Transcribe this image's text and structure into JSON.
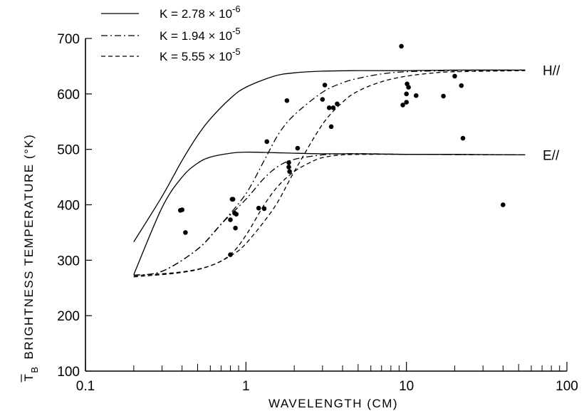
{
  "chart_data": {
    "type": "line",
    "xlabel": "WAVELENGTH (CM)",
    "ylabel_main": "BRIGHTNESS TEMPERATURE (°K)",
    "ylabel_symbol": "T",
    "ylabel_subscript": "B",
    "x_scale": "log",
    "xlim": [
      0.1,
      100
    ],
    "ylim": [
      100,
      700
    ],
    "x_ticks": [
      {
        "value": 0.1,
        "label": "0.1"
      },
      {
        "value": 1,
        "label": "1"
      },
      {
        "value": 10,
        "label": "10"
      },
      {
        "value": 100,
        "label": "100"
      }
    ],
    "y_ticks": [
      {
        "value": 100,
        "label": "100"
      },
      {
        "value": 200,
        "label": "200"
      },
      {
        "value": 300,
        "label": "300"
      },
      {
        "value": 400,
        "label": "400"
      },
      {
        "value": 500,
        "label": "500"
      },
      {
        "value": 600,
        "label": "600"
      },
      {
        "value": 700,
        "label": "700"
      }
    ],
    "grid": false,
    "legend": {
      "placement": "top-left",
      "entries": [
        {
          "style": "solid",
          "prefix": "K = 2.78 × 10",
          "exponent": "-6"
        },
        {
          "style": "dashdot",
          "prefix": "K = 1.94 × 10",
          "exponent": "-5"
        },
        {
          "style": "dashed",
          "prefix": "K = 5.55 × 10",
          "exponent": "-5"
        }
      ]
    },
    "curve_labels": [
      {
        "text": "H//",
        "group": "H"
      },
      {
        "text": "E//",
        "group": "E"
      }
    ],
    "series": [
      {
        "group": "H",
        "style": "solid",
        "x": [
          0.2,
          0.3,
          0.4,
          0.5,
          0.6,
          0.8,
          1,
          1.5,
          2,
          3,
          5,
          10,
          20,
          55
        ],
        "y": [
          333,
          415,
          480,
          525,
          555,
          592,
          612,
          632,
          638,
          641,
          642,
          642,
          643,
          643
        ]
      },
      {
        "group": "H",
        "style": "dashdot",
        "x": [
          0.2,
          0.3,
          0.5,
          0.7,
          1,
          1.3,
          1.6,
          2,
          3,
          4,
          5,
          7,
          10,
          20,
          55
        ],
        "y": [
          273,
          280,
          320,
          365,
          420,
          480,
          528,
          562,
          603,
          620,
          628,
          636,
          640,
          642,
          643
        ]
      },
      {
        "group": "H",
        "style": "dashed",
        "x": [
          0.2,
          0.4,
          0.6,
          0.8,
          1,
          1.5,
          2,
          3,
          4,
          5,
          7,
          10,
          15,
          20,
          55
        ],
        "y": [
          272,
          279,
          290,
          308,
          330,
          395,
          460,
          545,
          585,
          605,
          622,
          632,
          638,
          640,
          642
        ]
      },
      {
        "group": "E",
        "style": "solid",
        "x": [
          0.2,
          0.3,
          0.4,
          0.5,
          0.6,
          0.8,
          1,
          1.5,
          2,
          3,
          5,
          10,
          20,
          55
        ],
        "y": [
          274,
          395,
          450,
          475,
          486,
          493,
          495,
          494,
          493,
          492,
          492,
          491,
          491,
          490
        ]
      },
      {
        "group": "E",
        "style": "dashdot",
        "x": [
          0.2,
          0.3,
          0.5,
          0.7,
          1,
          1.3,
          1.6,
          2,
          3,
          4,
          6,
          10,
          55
        ],
        "y": [
          273,
          280,
          320,
          365,
          410,
          448,
          470,
          482,
          490,
          492,
          492,
          491,
          490
        ]
      },
      {
        "group": "E",
        "style": "dashed",
        "x": [
          0.2,
          0.4,
          0.6,
          0.8,
          1,
          1.3,
          1.6,
          2,
          2.5,
          3,
          4,
          6,
          10,
          55
        ],
        "y": [
          270,
          278,
          290,
          310,
          345,
          400,
          435,
          460,
          476,
          485,
          490,
          491,
          491,
          490
        ]
      },
      {
        "group": "data",
        "style": "points",
        "x": [
          0.39,
          0.4,
          0.42,
          0.8,
          0.82,
          0.83,
          0.85,
          0.87,
          0.86,
          0.8,
          1.2,
          1.3,
          1.35,
          1.8,
          1.85,
          1.87,
          1.85,
          2.1,
          3.0,
          3.1,
          3.3,
          3.4,
          3.5,
          3.7,
          9.3,
          9.5,
          10.0,
          10.1,
          10.3,
          10.0,
          11.5,
          17.0,
          20.0,
          22.0,
          22.5,
          40.0
        ],
        "y": [
          390,
          391,
          350,
          373,
          410,
          410,
          385,
          383,
          358,
          310,
          394,
          393,
          514,
          588,
          476,
          460,
          468,
          502,
          590,
          616,
          575,
          541,
          575,
          582,
          686,
          580,
          585,
          618,
          612,
          600,
          597,
          596,
          632,
          615,
          520,
          400
        ]
      }
    ]
  }
}
